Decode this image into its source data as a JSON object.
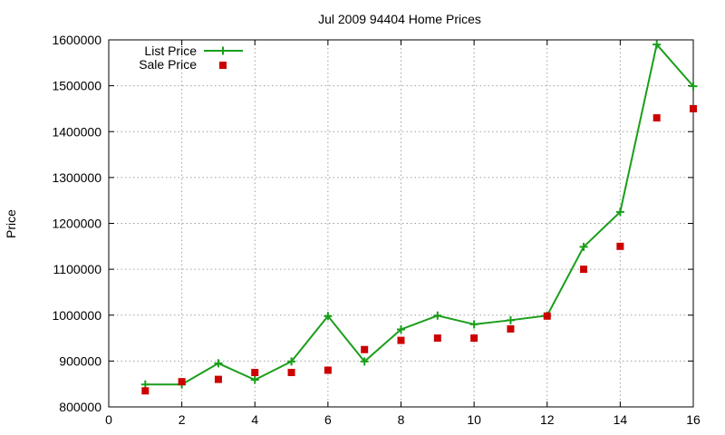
{
  "chart_data": {
    "type": "line",
    "title": "Jul 2009 94404 Home Prices",
    "xlabel": "",
    "ylabel": "Price",
    "xlim": [
      0,
      16
    ],
    "ylim": [
      800000,
      1600000
    ],
    "x_ticks": [
      0,
      2,
      4,
      6,
      8,
      10,
      12,
      14,
      16
    ],
    "y_ticks": [
      800000,
      900000,
      1000000,
      1100000,
      1200000,
      1300000,
      1400000,
      1500000,
      1600000
    ],
    "grid": true,
    "legend_position": "top-left",
    "series": [
      {
        "name": "List Price",
        "style": "linespoints",
        "marker": "plus",
        "color": "#1a9e1a",
        "x": [
          1,
          2,
          3,
          4,
          5,
          6,
          7,
          8,
          9,
          10,
          11,
          12,
          13,
          14,
          15,
          16
        ],
        "y": [
          849000,
          849000,
          895000,
          859000,
          899000,
          998000,
          899000,
          969000,
          999000,
          980000,
          989000,
          999000,
          1149000,
          1225000,
          1590000,
          1499000
        ]
      },
      {
        "name": "Sale Price",
        "style": "points",
        "marker": "square",
        "color": "#cc0000",
        "x": [
          1,
          2,
          3,
          4,
          5,
          6,
          7,
          8,
          9,
          10,
          11,
          12,
          13,
          14,
          15,
          16
        ],
        "y": [
          835000,
          855000,
          860000,
          875000,
          875000,
          880000,
          925000,
          945000,
          950000,
          950000,
          970000,
          998000,
          1100000,
          1150000,
          1430000,
          1450000
        ]
      }
    ]
  }
}
